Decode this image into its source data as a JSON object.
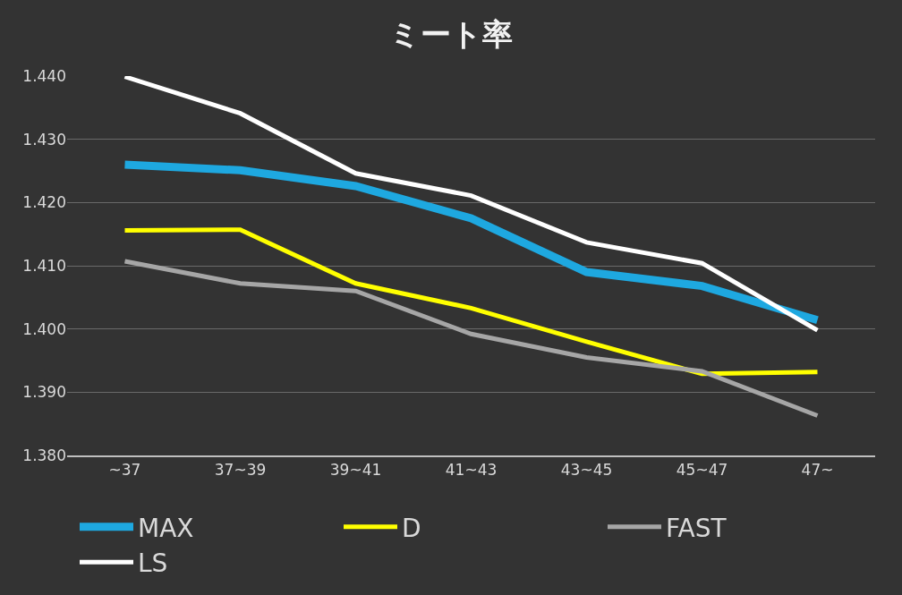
{
  "chart_data": {
    "type": "line",
    "title": "ミート率",
    "categories": [
      "~37",
      "37~39",
      "39~41",
      "41~43",
      "43~45",
      "45~47",
      "47~"
    ],
    "series": [
      {
        "name": "MAX",
        "color": "#1ea8e0",
        "values": [
          1.426,
          1.4251,
          1.4226,
          1.4175,
          1.409,
          1.4068,
          1.4014
        ]
      },
      {
        "name": "D",
        "color": "#ffff00",
        "values": [
          1.4156,
          1.4157,
          1.4072,
          1.4033,
          1.398,
          1.3929,
          1.3932
        ]
      },
      {
        "name": "FAST",
        "color": "#a6a6a6",
        "values": [
          1.4107,
          1.4072,
          1.406,
          1.3992,
          1.3955,
          1.3933,
          1.3863
        ]
      },
      {
        "name": "LS",
        "color": "#ffffff",
        "values": [
          1.4399,
          1.4341,
          1.4246,
          1.4211,
          1.4137,
          1.4104,
          1.3998
        ]
      }
    ],
    "ylim": [
      1.38,
      1.44
    ],
    "yticks": [
      {
        "value": 1.38,
        "label": "1.380"
      },
      {
        "value": 1.39,
        "label": "1.390"
      },
      {
        "value": 1.4,
        "label": "1.400"
      },
      {
        "value": 1.41,
        "label": "1.410"
      },
      {
        "value": 1.42,
        "label": "1.420"
      },
      {
        "value": 1.43,
        "label": "1.430"
      },
      {
        "value": 1.44,
        "label": "1.440"
      }
    ],
    "grid": "y",
    "legend": "bottom",
    "marker": "none",
    "line_style": "solid"
  }
}
